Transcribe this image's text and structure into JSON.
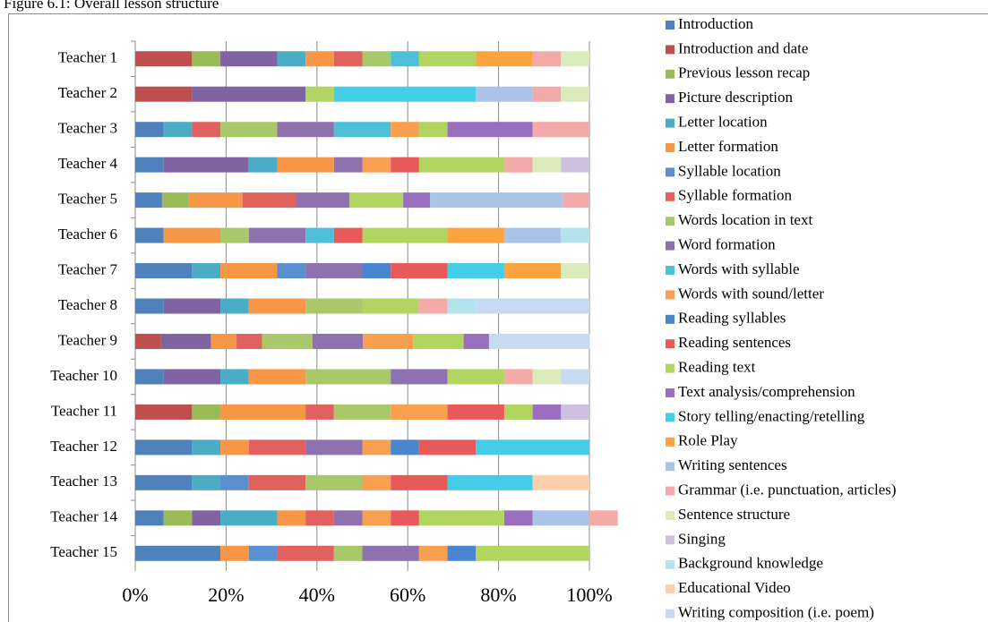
{
  "chart_data": {
    "type": "stacked_bar_horizontal",
    "title": "Figure 6.1: Overall lesson structure",
    "categories": [
      "Teacher 1",
      "Teacher 2",
      "Teacher 3",
      "Teacher 4",
      "Teacher 5",
      "Teacher 6",
      "Teacher 7",
      "Teacher 8",
      "Teacher 9",
      "Teacher 10",
      "Teacher 11",
      "Teacher 12",
      "Teacher 13",
      "Teacher 14",
      "Teacher 15"
    ],
    "xlim": [
      0,
      100
    ],
    "xticks": [
      {
        "value": 0,
        "label": "0%"
      },
      {
        "value": 20,
        "label": "20%"
      },
      {
        "value": 40,
        "label": "40%"
      },
      {
        "value": 60,
        "label": "60%"
      },
      {
        "value": 80,
        "label": "80%"
      },
      {
        "value": 100,
        "label": "100%"
      }
    ],
    "grid": true,
    "legend": "right",
    "series": [
      {
        "name": "Introduction",
        "color": "#4f81bd",
        "values": [
          0,
          0,
          6.25,
          6.25,
          5.9,
          6.25,
          12.5,
          6.25,
          0,
          6.25,
          0,
          12.5,
          12.5,
          6.25,
          18.75
        ]
      },
      {
        "name": "Introduction and date",
        "color": "#c0504d",
        "values": [
          12.5,
          12.5,
          0,
          0,
          0,
          0,
          0,
          0,
          5.6,
          0,
          12.5,
          0,
          0,
          0,
          0
        ]
      },
      {
        "name": "Previous lesson recap",
        "color": "#9bbb59",
        "values": [
          6.25,
          0,
          0,
          0,
          5.9,
          0,
          0,
          0,
          0,
          0,
          6.25,
          0,
          0,
          6.25,
          0
        ]
      },
      {
        "name": "Picture description",
        "color": "#8064a2",
        "values": [
          12.5,
          25,
          0,
          18.75,
          0,
          0,
          0,
          12.5,
          11.1,
          12.5,
          0,
          0,
          0,
          6.25,
          0
        ]
      },
      {
        "name": "Letter location",
        "color": "#4bacc6",
        "values": [
          6.25,
          0,
          6.25,
          6.25,
          0,
          0,
          6.25,
          6.25,
          0,
          6.25,
          0,
          6.25,
          6.25,
          12.5,
          0
        ]
      },
      {
        "name": "Letter formation",
        "color": "#f79646",
        "values": [
          6.25,
          0,
          0,
          12.5,
          11.8,
          12.5,
          12.5,
          12.5,
          5.6,
          12.5,
          18.75,
          6.25,
          0,
          6.25,
          6.25
        ]
      },
      {
        "name": "Syllable location",
        "color": "#5b8fcf",
        "values": [
          0,
          0,
          0,
          0,
          0,
          0,
          6.25,
          0,
          0,
          0,
          0,
          0,
          6.25,
          0,
          6.25
        ]
      },
      {
        "name": "Syllable formation",
        "color": "#e0615e",
        "values": [
          6.25,
          0,
          6.25,
          0,
          11.8,
          0,
          0,
          0,
          5.6,
          0,
          6.25,
          12.5,
          12.5,
          6.25,
          12.5
        ]
      },
      {
        "name": "Words location in text",
        "color": "#a8c86a",
        "values": [
          6.25,
          0,
          12.5,
          0,
          0,
          6.25,
          0,
          12.5,
          11.1,
          18.75,
          12.5,
          0,
          12.5,
          0,
          6.25
        ]
      },
      {
        "name": "Word formation",
        "color": "#8e72b0",
        "values": [
          0,
          0,
          12.5,
          6.25,
          11.8,
          12.5,
          12.5,
          0,
          11.1,
          12.5,
          0,
          12.5,
          0,
          6.25,
          12.5
        ]
      },
      {
        "name": "Words with syllable",
        "color": "#4dc0d8",
        "values": [
          6.25,
          0,
          12.5,
          0,
          0,
          6.25,
          0,
          0,
          0,
          0,
          0,
          0,
          0,
          0,
          0
        ]
      },
      {
        "name": "Words with sound/letter",
        "color": "#f9a050",
        "values": [
          0,
          0,
          6.25,
          6.25,
          0,
          0,
          0,
          0,
          11.1,
          0,
          12.5,
          6.25,
          6.25,
          6.25,
          6.25
        ]
      },
      {
        "name": "Reading syllables",
        "color": "#4a86d0",
        "values": [
          0,
          0,
          0,
          0,
          0,
          0,
          6.25,
          0,
          0,
          0,
          0,
          6.25,
          0,
          0,
          6.25
        ]
      },
      {
        "name": "Reading sentences",
        "color": "#e85a5a",
        "values": [
          0,
          0,
          0,
          6.25,
          0,
          6.25,
          12.5,
          0,
          0,
          0,
          12.5,
          12.5,
          12.5,
          6.25,
          0
        ]
      },
      {
        "name": "Reading text",
        "color": "#b2d561",
        "values": [
          12.5,
          6.25,
          6.25,
          18.75,
          11.8,
          18.75,
          0,
          12.5,
          11.1,
          12.5,
          6.25,
          0,
          0,
          18.75,
          25
        ]
      },
      {
        "name": "Text analysis/comprehension",
        "color": "#9a6fc0",
        "values": [
          0,
          0,
          18.75,
          0,
          5.9,
          0,
          0,
          0,
          5.6,
          0,
          6.25,
          0,
          0,
          6.25,
          0
        ]
      },
      {
        "name": "Story telling/enacting/retelling",
        "color": "#43cde6",
        "values": [
          0,
          31.25,
          0,
          0,
          0,
          0,
          12.5,
          0,
          0,
          0,
          0,
          25,
          18.75,
          0,
          0
        ]
      },
      {
        "name": "Role Play",
        "color": "#fba33f",
        "values": [
          12.5,
          0,
          0,
          0,
          0,
          12.5,
          12.5,
          0,
          0,
          0,
          0,
          0,
          0,
          0,
          0
        ]
      },
      {
        "name": "Writing sentences",
        "color": "#a9c4e6",
        "values": [
          0,
          12.5,
          0,
          0,
          29.3,
          12.5,
          0,
          0,
          0,
          0,
          0,
          0,
          0,
          12.5,
          0
        ]
      },
      {
        "name": "Grammar (i.e. punctuation, articles)",
        "color": "#f3aaa9",
        "values": [
          6.25,
          6.25,
          12.5,
          6.25,
          5.8,
          0,
          0,
          6.25,
          0,
          6.25,
          0,
          0,
          0,
          6.25,
          0
        ]
      },
      {
        "name": "Sentence structure",
        "color": "#dcebbc",
        "values": [
          6.25,
          6.25,
          0,
          6.25,
          0,
          0,
          6.25,
          0,
          0,
          6.25,
          0,
          0,
          0,
          0,
          0
        ]
      },
      {
        "name": "Singing",
        "color": "#cdc1df",
        "values": [
          0,
          0,
          0,
          6.25,
          0,
          0,
          0,
          0,
          0,
          0,
          6.25,
          0,
          0,
          0,
          0
        ]
      },
      {
        "name": "Background knowledge",
        "color": "#b4e3ee",
        "values": [
          0,
          0,
          0,
          0,
          0,
          6.25,
          0,
          6.25,
          0,
          0,
          0,
          0,
          0,
          0,
          0
        ]
      },
      {
        "name": "Educational Video",
        "color": "#fcceaa",
        "values": [
          0,
          0,
          0,
          0,
          0,
          0,
          0,
          0,
          0,
          0,
          0,
          0,
          12.5,
          0,
          0
        ]
      },
      {
        "name": "Writing composition (i.e. poem)",
        "color": "#c8daf2",
        "values": [
          0,
          0,
          0,
          0,
          0,
          0,
          0,
          25,
          22.2,
          6.25,
          0,
          0,
          0,
          0,
          0
        ]
      }
    ]
  }
}
